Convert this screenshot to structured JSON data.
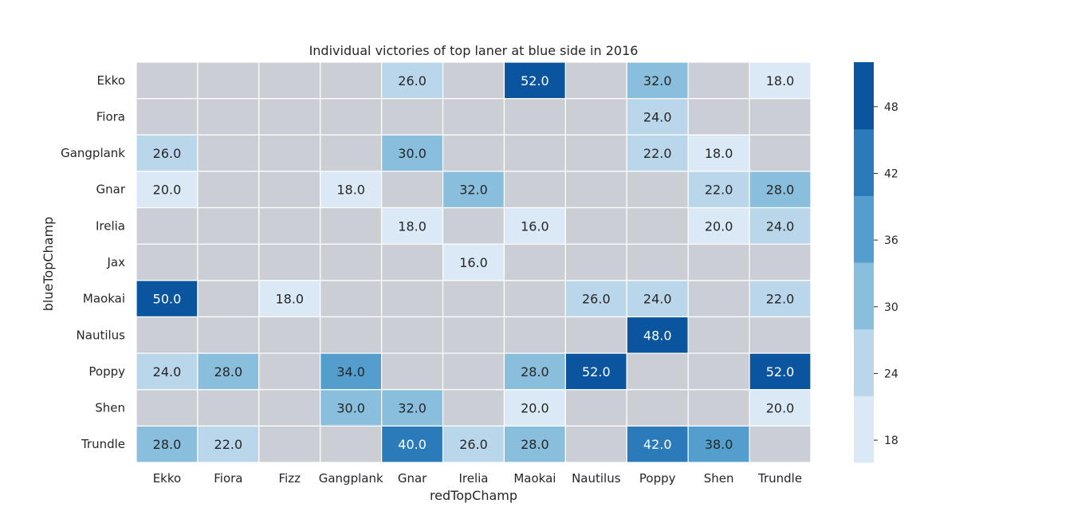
{
  "chart_data": {
    "type": "heatmap",
    "title": "Individual victories of top laner at blue side in 2016",
    "xlabel": "redTopChamp",
    "ylabel": "blueTopChamp",
    "x_categories": [
      "Ekko",
      "Fiora",
      "Fizz",
      "Gangplank",
      "Gnar",
      "Irelia",
      "Maokai",
      "Nautilus",
      "Poppy",
      "Shen",
      "Trundle"
    ],
    "y_categories": [
      "Ekko",
      "Fiora",
      "Gangplank",
      "Gnar",
      "Irelia",
      "Jax",
      "Maokai",
      "Nautilus",
      "Poppy",
      "Shen",
      "Trundle"
    ],
    "values": [
      [
        null,
        null,
        null,
        null,
        26.0,
        null,
        52.0,
        null,
        32.0,
        null,
        18.0
      ],
      [
        null,
        null,
        null,
        null,
        null,
        null,
        null,
        null,
        24.0,
        null,
        null
      ],
      [
        26.0,
        null,
        null,
        null,
        30.0,
        null,
        null,
        null,
        22.0,
        18.0,
        null
      ],
      [
        20.0,
        null,
        null,
        18.0,
        null,
        32.0,
        null,
        null,
        null,
        22.0,
        28.0
      ],
      [
        null,
        null,
        null,
        null,
        18.0,
        null,
        16.0,
        null,
        null,
        20.0,
        24.0
      ],
      [
        null,
        null,
        null,
        null,
        null,
        16.0,
        null,
        null,
        null,
        null,
        null
      ],
      [
        50.0,
        null,
        18.0,
        null,
        null,
        null,
        null,
        26.0,
        24.0,
        null,
        22.0
      ],
      [
        null,
        null,
        null,
        null,
        null,
        null,
        null,
        null,
        48.0,
        null,
        null
      ],
      [
        24.0,
        28.0,
        null,
        34.0,
        null,
        null,
        28.0,
        52.0,
        null,
        null,
        52.0
      ],
      [
        null,
        null,
        null,
        30.0,
        32.0,
        null,
        20.0,
        null,
        null,
        null,
        20.0
      ],
      [
        28.0,
        22.0,
        null,
        null,
        40.0,
        26.0,
        28.0,
        null,
        42.0,
        38.0,
        null
      ]
    ],
    "colorbar": {
      "range": [
        16,
        52
      ],
      "ticks": [
        "18",
        "24",
        "30",
        "36",
        "42",
        "48"
      ],
      "tick_values": [
        18,
        24,
        30,
        36,
        42,
        48
      ],
      "colors": [
        "#dbe9f6",
        "#bad6eb",
        "#89bedc",
        "#539ecd",
        "#2b7bba",
        "#0b559f"
      ]
    },
    "missing_color": "#cbcfd5",
    "grid_color": "#ffffff",
    "legend": "right"
  }
}
